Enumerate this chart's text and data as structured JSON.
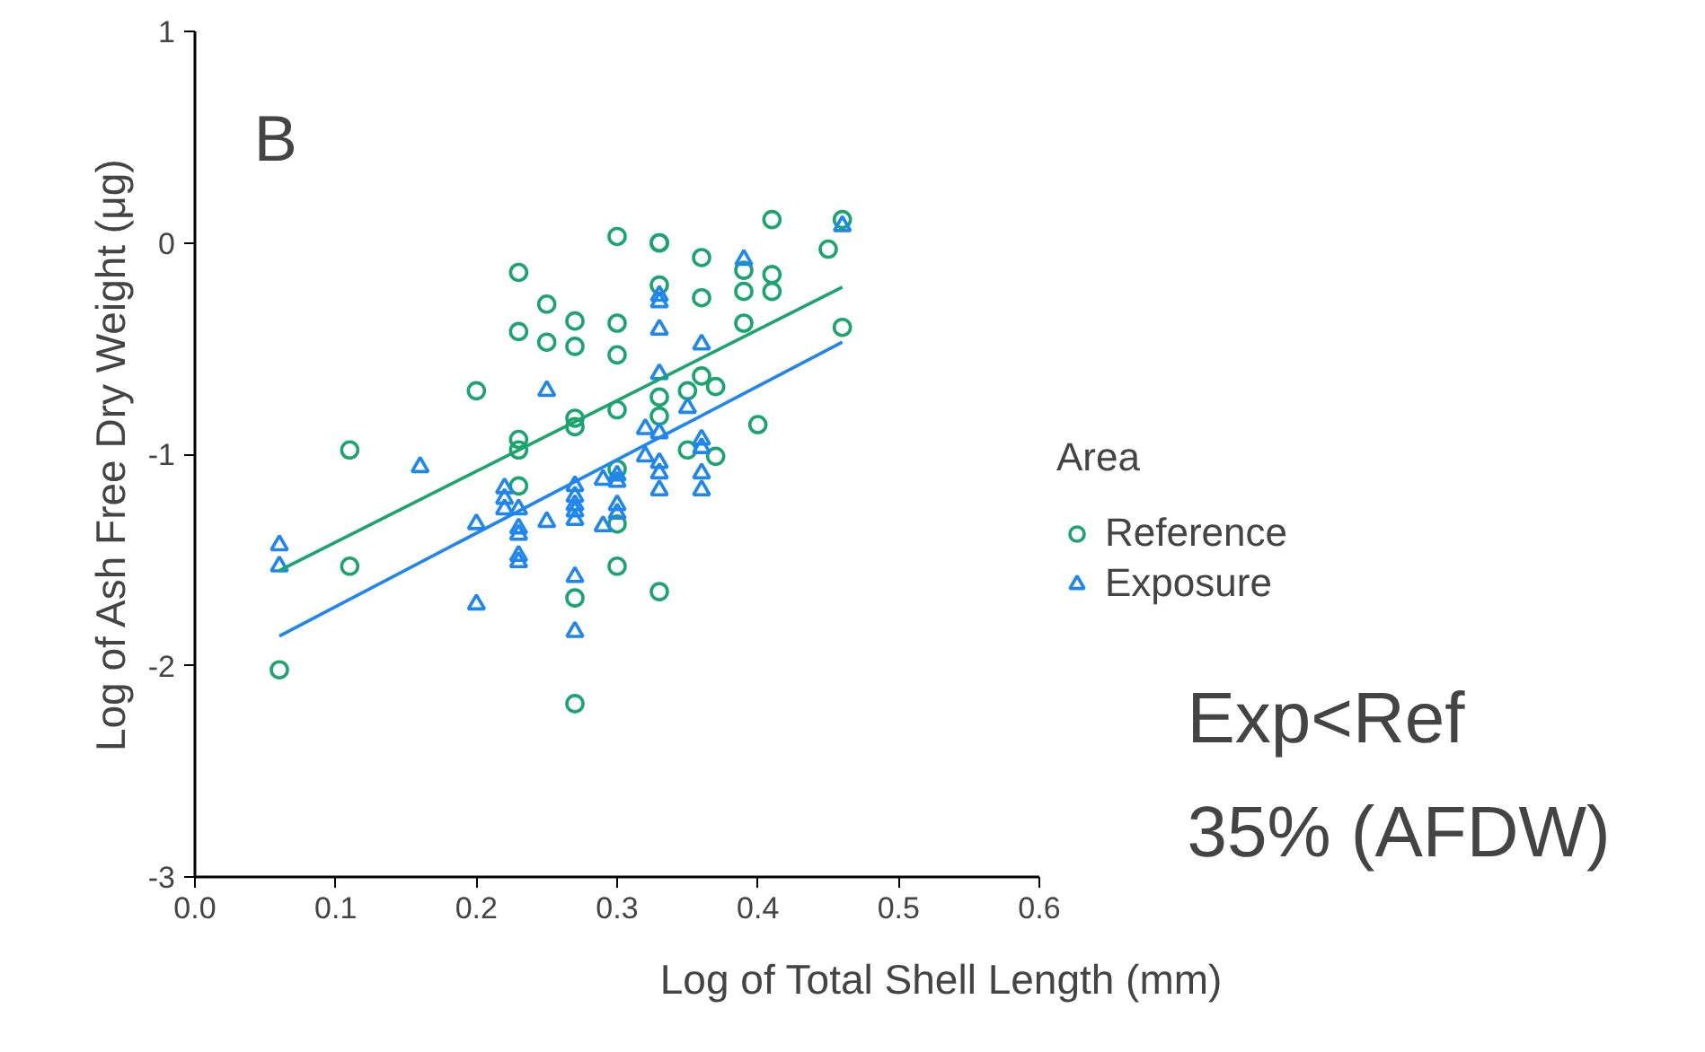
{
  "chart_data": {
    "type": "scatter",
    "xlabel": "Log of Total Shell Length (mm)",
    "ylabel": "Log of Ash Free Dry Weight (μg)",
    "legend_title": "Area",
    "legend": "right",
    "grid": false,
    "annotations": [
      "B",
      "Exp<Ref",
      "35% (AFDW)"
    ],
    "xlim": [
      0,
      0.6
    ],
    "ylim": [
      -3,
      1
    ],
    "xticks": [
      {
        "value": 0,
        "label": "0.0"
      },
      {
        "value": 0.1,
        "label": "0.1"
      },
      {
        "value": 0.2,
        "label": "0.2"
      },
      {
        "value": 0.3,
        "label": "0.3"
      },
      {
        "value": 0.4,
        "label": "0.4"
      },
      {
        "value": 0.5,
        "label": "0.5"
      },
      {
        "value": 0.6,
        "label": "0.6"
      }
    ],
    "yticks": [
      -3,
      -2,
      -1,
      0,
      1
    ],
    "series": [
      {
        "name": "Reference",
        "color": "#1ba56e",
        "marker": "circle",
        "x": [
          0.06,
          0.11,
          0.11,
          0.2,
          0.23,
          0.25,
          0.23,
          0.25,
          0.27,
          0.27,
          0.23,
          0.23,
          0.23,
          0.27,
          0.27,
          0.27,
          0.27,
          0.3,
          0.33,
          0.36,
          0.33,
          0.3,
          0.3,
          0.36,
          0.39,
          0.39,
          0.39,
          0.41,
          0.41,
          0.41,
          0.45,
          0.46,
          0.46,
          0.3,
          0.33,
          0.33,
          0.35,
          0.36,
          0.37,
          0.4,
          0.35,
          0.37,
          0.33,
          0.3,
          0.3,
          0.3,
          0.33
        ],
        "values": [
          -2.02,
          -0.98,
          -1.53,
          -0.7,
          -0.14,
          -0.29,
          -0.42,
          -0.47,
          -0.37,
          -0.49,
          -0.93,
          -0.98,
          -1.15,
          -0.83,
          -0.87,
          -1.68,
          -2.18,
          0.03,
          0.0,
          -0.07,
          -0.2,
          -0.38,
          -0.53,
          -0.26,
          -0.13,
          -0.23,
          -0.38,
          0.11,
          -0.15,
          -0.23,
          -0.03,
          0.11,
          -0.4,
          -0.79,
          -0.73,
          -0.82,
          -0.7,
          -0.63,
          -0.68,
          -0.86,
          -0.98,
          -1.01,
          null,
          -1.07,
          -1.33,
          -1.53,
          -1.65
        ]
      },
      {
        "name": "Exposure",
        "color": "#1f86ef",
        "marker": "triangle",
        "x": [
          0.06,
          0.06,
          0.16,
          0.25,
          0.2,
          0.2,
          0.22,
          0.22,
          0.22,
          0.23,
          0.23,
          0.23,
          0.23,
          0.23,
          0.25,
          0.27,
          0.27,
          0.27,
          0.27,
          0.27,
          0.27,
          0.27,
          0.29,
          0.29,
          0.46,
          0.39,
          0.33,
          0.33,
          0.33,
          0.36,
          0.33,
          0.35,
          0.32,
          0.33,
          0.32,
          0.36,
          0.36,
          0.33,
          0.33,
          0.33,
          0.36,
          0.36,
          0.3,
          0.3,
          0.3,
          0.3
        ],
        "values": [
          -1.43,
          -1.53,
          -1.06,
          -0.7,
          -1.33,
          -1.71,
          -1.16,
          -1.21,
          -1.26,
          -1.26,
          -1.35,
          -1.38,
          -1.48,
          -1.51,
          -1.32,
          -1.15,
          -1.2,
          -1.24,
          -1.27,
          -1.31,
          -1.58,
          -1.84,
          -1.12,
          -1.34,
          0.08,
          -0.08,
          -0.25,
          -0.28,
          -0.41,
          -0.48,
          -0.62,
          -0.78,
          -0.88,
          -0.9,
          -1.01,
          -0.93,
          -0.97,
          -1.04,
          -1.09,
          -1.17,
          -1.09,
          -1.17,
          -1.1,
          -1.13,
          -1.24,
          -1.28
        ]
      },
      {
        "type": "line",
        "color": "#1ba56e",
        "x": [
          0.06,
          0.46
        ],
        "values": [
          -1.55,
          -0.21
        ]
      },
      {
        "type": "line",
        "color": "#1f86ef",
        "x": [
          0.06,
          0.46
        ],
        "values": [
          -1.86,
          -0.47
        ]
      }
    ]
  }
}
